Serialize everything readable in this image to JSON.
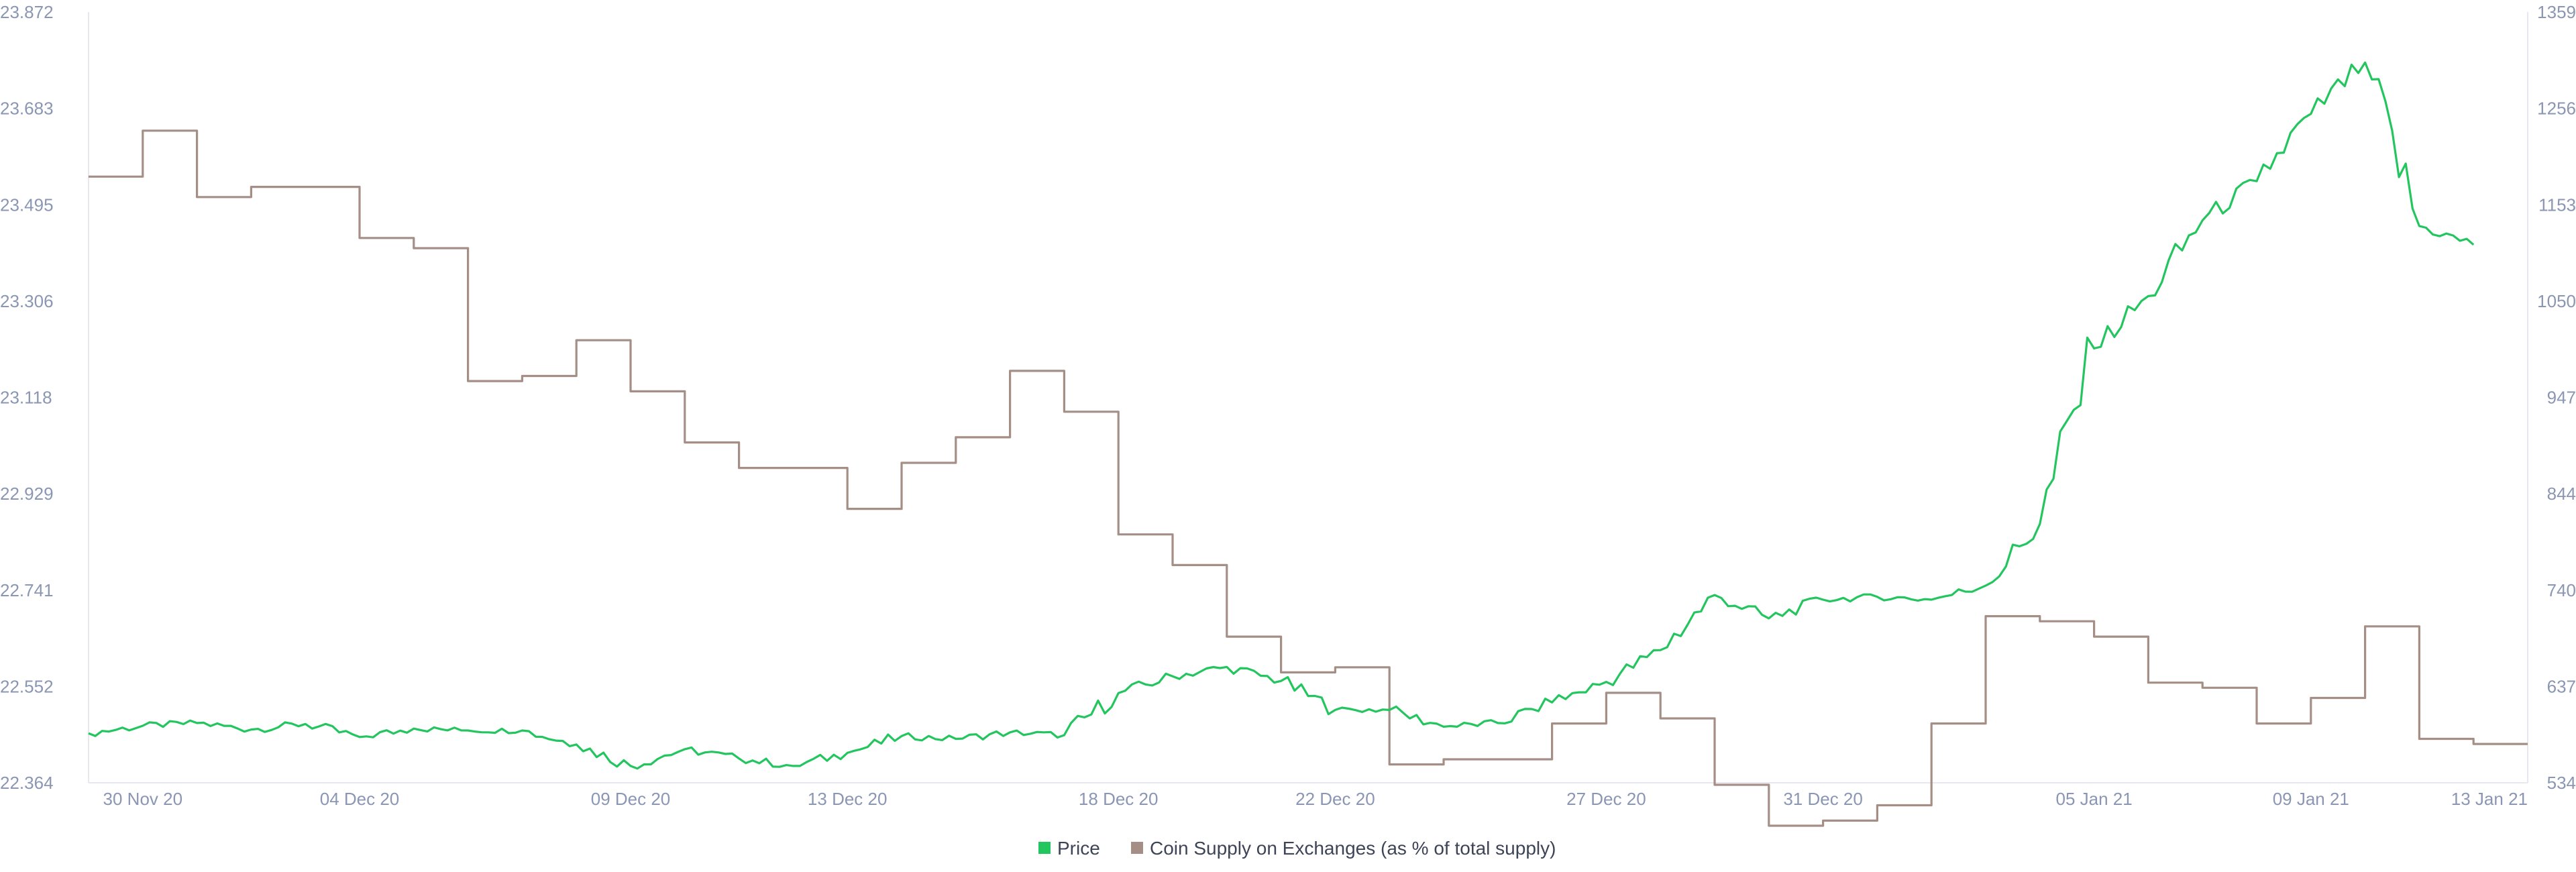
{
  "chart_data": {
    "type": "line",
    "colors": {
      "price": "#22c55e",
      "supply": "#a48e86",
      "axis_text": "#8a96b3",
      "axis_line": "#e6e8ee"
    },
    "legend_position": "bottom-center",
    "grid": false,
    "x_axis": {
      "range": [
        "2020-11-29",
        "2021-01-13"
      ],
      "tick_labels": [
        "30 Nov 20",
        "04 Dec 20",
        "09 Dec 20",
        "13 Dec 20",
        "18 Dec 20",
        "22 Dec 20",
        "27 Dec 20",
        "31 Dec 20",
        "05 Jan 21",
        "09 Jan 21",
        "13 Jan 21"
      ],
      "tick_dates": [
        "2020-11-30",
        "2020-12-04",
        "2020-12-09",
        "2020-12-13",
        "2020-12-18",
        "2020-12-22",
        "2020-12-27",
        "2020-12-31",
        "2021-01-05",
        "2021-01-09",
        "2021-01-13"
      ]
    },
    "y_left": {
      "range": [
        22.364,
        23.872
      ],
      "tick_labels": [
        "23.872",
        "23.683",
        "23.495",
        "23.306",
        "23.118",
        "22.929",
        "22.741",
        "22.552",
        "22.364"
      ]
    },
    "y_right": {
      "range": [
        534,
        1359
      ],
      "tick_labels": [
        "1359",
        "1256",
        "1153",
        "1050",
        "947",
        "844",
        "740",
        "637",
        "534"
      ]
    },
    "series": [
      {
        "name": "Price",
        "axis": "right",
        "step": false,
        "x": [
          "2020-11-29",
          "2020-11-30",
          "2020-12-01",
          "2020-12-02",
          "2020-12-03",
          "2020-12-04",
          "2020-12-05",
          "2020-12-06",
          "2020-12-07",
          "2020-12-08",
          "2020-12-09",
          "2020-12-10",
          "2020-12-11",
          "2020-12-12",
          "2020-12-13",
          "2020-12-14",
          "2020-12-15",
          "2020-12-16",
          "2020-12-17",
          "2020-12-18",
          "2020-12-19",
          "2020-12-20",
          "2020-12-21",
          "2020-12-22",
          "2020-12-23",
          "2020-12-24",
          "2020-12-25",
          "2020-12-26",
          "2020-12-27",
          "2020-12-28",
          "2020-12-29",
          "2020-12-30",
          "2020-12-31",
          "2021-01-01",
          "2021-01-02",
          "2021-01-03",
          "2021-01-04",
          "2021-01-05",
          "2021-01-06",
          "2021-01-07",
          "2021-01-08",
          "2021-01-09",
          "2021-01-10",
          "2021-01-11",
          "2021-01-12"
        ],
        "values": [
          587,
          595,
          598,
          591,
          597,
          583,
          592,
          590,
          590,
          575,
          552,
          570,
          560,
          552,
          566,
          584,
          581,
          588,
          585,
          630,
          648,
          658,
          643,
          612,
          612,
          594,
          598,
          620,
          642,
          676,
          735,
          710,
          730,
          733,
          730,
          745,
          811,
          999,
          1055,
          1136,
          1178,
          1250,
          1305,
          1130,
          1110
        ]
      },
      {
        "name": "Coin Supply on Exchanges (as % of total supply)",
        "axis": "left",
        "step": true,
        "x": [
          "2020-11-29",
          "2020-11-30",
          "2020-12-01",
          "2020-12-02",
          "2020-12-03",
          "2020-12-04",
          "2020-12-05",
          "2020-12-06",
          "2020-12-07",
          "2020-12-08",
          "2020-12-09",
          "2020-12-10",
          "2020-12-11",
          "2020-12-12",
          "2020-12-13",
          "2020-12-14",
          "2020-12-15",
          "2020-12-16",
          "2020-12-17",
          "2020-12-18",
          "2020-12-19",
          "2020-12-20",
          "2020-12-21",
          "2020-12-22",
          "2020-12-23",
          "2020-12-24",
          "2020-12-25",
          "2020-12-26",
          "2020-12-27",
          "2020-12-28",
          "2020-12-29",
          "2020-12-30",
          "2020-12-31",
          "2021-01-01",
          "2021-01-02",
          "2021-01-03",
          "2021-01-04",
          "2021-01-05",
          "2021-01-06",
          "2021-01-07",
          "2021-01-08",
          "2021-01-09",
          "2021-01-10",
          "2021-01-11",
          "2021-01-12"
        ],
        "values": [
          23.55,
          23.64,
          23.51,
          23.53,
          23.53,
          23.43,
          23.41,
          23.15,
          23.16,
          23.23,
          23.13,
          23.03,
          22.98,
          22.98,
          22.9,
          22.99,
          23.04,
          23.17,
          23.09,
          22.85,
          22.79,
          22.65,
          22.58,
          22.59,
          22.4,
          22.41,
          22.41,
          22.48,
          22.54,
          22.49,
          22.36,
          22.28,
          22.29,
          22.32,
          22.48,
          22.69,
          22.68,
          22.65,
          22.56,
          22.55,
          22.48,
          22.53,
          22.67,
          22.45,
          22.44
        ]
      }
    ]
  }
}
